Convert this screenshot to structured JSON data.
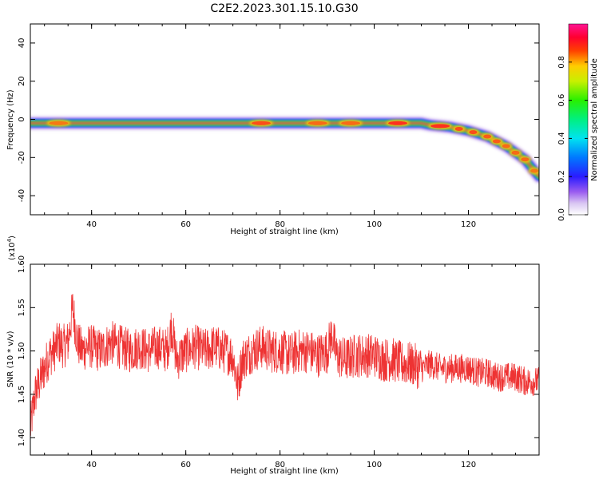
{
  "figure_title": "C2E2.2023.301.15.10.G30",
  "chart_data": [
    {
      "type": "heatmap",
      "title": "C2E2.2023.301.15.10.G30",
      "xlabel": "Height of straight line (km)",
      "ylabel": "Frequency (Hz)",
      "xlim": [
        27,
        135
      ],
      "ylim": [
        -50,
        50
      ],
      "xticks": [
        40,
        60,
        80,
        100,
        120
      ],
      "xtick_labels": [
        "40",
        "60",
        "80",
        "100",
        "120"
      ],
      "yticks": [
        -40,
        -20,
        0,
        20,
        40
      ],
      "ytick_labels": [
        "-40",
        "-20",
        "0",
        "20",
        "40"
      ],
      "colorbar": {
        "label": "Normalized spectral amplitude",
        "range": [
          0,
          1
        ],
        "ticks": [
          0.0,
          0.2,
          0.4,
          0.6,
          0.8
        ],
        "tick_labels": [
          "0.0",
          "0.2",
          "0.4",
          "0.6",
          "0.8"
        ],
        "colormap": "rainbow (white-purple-blue-cyan-green-yellow-red-magenta)"
      },
      "ridge": {
        "description": "Doppler frequency peak vs height",
        "x": [
          27,
          40,
          60,
          80,
          90,
          100,
          110,
          112,
          116,
          120,
          124,
          128,
          132,
          135
        ],
        "y": [
          -2,
          -2,
          -2,
          -2,
          -2,
          -2,
          -2,
          -3,
          -4,
          -6,
          -9,
          -14,
          -21,
          -30
        ]
      }
    },
    {
      "type": "line",
      "xlabel": "Height of straight line (km)",
      "ylabel": "SNR (10 * v/v)",
      "y_multiplier_label": "(x10",
      "y_multiplier_exp": "4",
      "y_multiplier_close": ")",
      "xlim": [
        27,
        135
      ],
      "ylim": [
        13800,
        16000
      ],
      "xticks": [
        40,
        60,
        80,
        100,
        120
      ],
      "xtick_labels": [
        "40",
        "60",
        "80",
        "100",
        "120"
      ],
      "yticks": [
        14000,
        14500,
        15000,
        15500,
        16000
      ],
      "ytick_labels": [
        "1.40",
        "1.45",
        "1.50",
        "1.55",
        "1.60"
      ],
      "series": [
        {
          "color": "#ee3333",
          "x": [
            27,
            28,
            29,
            30,
            31,
            32,
            33,
            34,
            35,
            36,
            37,
            38,
            39,
            40,
            42,
            44,
            46,
            48,
            50,
            52,
            54,
            56,
            57,
            58,
            60,
            62,
            64,
            66,
            68,
            70,
            71,
            72,
            74,
            76,
            78,
            80,
            82,
            84,
            86,
            88,
            90,
            91,
            92,
            94,
            96,
            98,
            100,
            102,
            104,
            106,
            108,
            110,
            112,
            114,
            116,
            118,
            120,
            122,
            124,
            126,
            128,
            130,
            132,
            134,
            135
          ],
          "values": [
            14100,
            14500,
            14650,
            14800,
            14950,
            15000,
            15100,
            15050,
            15100,
            15500,
            15100,
            15000,
            15050,
            15050,
            15000,
            15100,
            15050,
            15000,
            15050,
            15000,
            15050,
            15000,
            15300,
            14900,
            15000,
            15050,
            15000,
            15050,
            15000,
            14950,
            14600,
            14900,
            15000,
            15050,
            15000,
            15000,
            14950,
            15000,
            15000,
            14950,
            15000,
            15200,
            14950,
            14900,
            14950,
            14950,
            14950,
            14900,
            14900,
            14850,
            14850,
            14800,
            14850,
            14800,
            14800,
            14800,
            14800,
            14750,
            14750,
            14700,
            14700,
            14700,
            14650,
            14650,
            14650
          ]
        }
      ]
    }
  ]
}
